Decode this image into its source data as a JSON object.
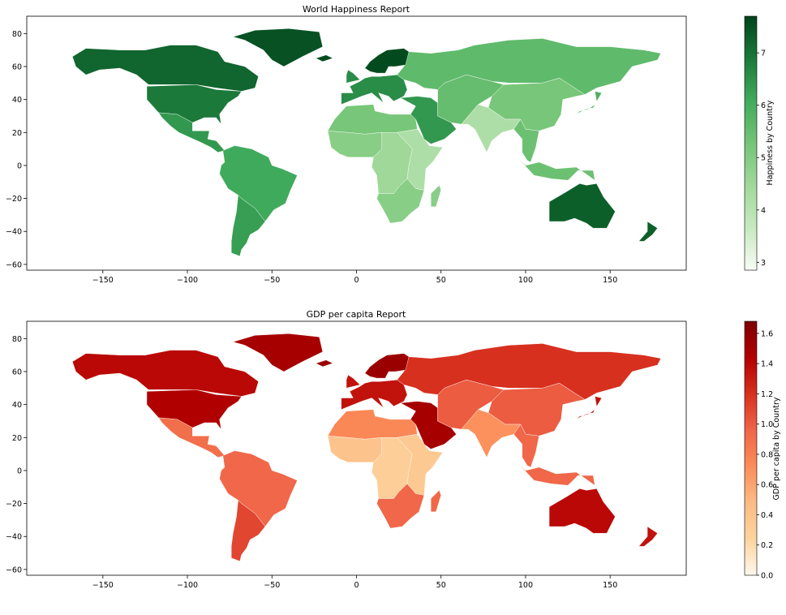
{
  "maps": [
    {
      "title": "World Happiness Report",
      "colorbar_label": "Happiness by Country",
      "colormap": "Greens",
      "x_ticks": [
        -150,
        -100,
        -50,
        0,
        50,
        100,
        150
      ],
      "y_ticks": [
        80,
        60,
        40,
        20,
        0,
        -20,
        -40,
        -60
      ],
      "cbar_ticks": [
        7,
        6,
        5,
        4,
        3
      ],
      "cbar_range": [
        2.85,
        7.7
      ],
      "cbar_stops": [
        "#00441b",
        "#1b7a3a",
        "#41ab5d",
        "#74c476",
        "#a1d99b",
        "#c7e9c0",
        "#f7fcf5"
      ],
      "regions": [
        {
          "name": "north-america",
          "value": 7.2
        },
        {
          "name": "usa",
          "value": 6.9
        },
        {
          "name": "mexico-central",
          "value": 6.4
        },
        {
          "name": "south-america",
          "value": 6.1
        },
        {
          "name": "southern-cone",
          "value": 6.3
        },
        {
          "name": "greenland",
          "value": 7.5
        },
        {
          "name": "scandinavia",
          "value": 7.6
        },
        {
          "name": "western-europe",
          "value": 6.6
        },
        {
          "name": "russia",
          "value": 5.6
        },
        {
          "name": "north-africa",
          "value": 5.2
        },
        {
          "name": "west-africa",
          "value": 4.9
        },
        {
          "name": "central-africa",
          "value": 4.5
        },
        {
          "name": "east-africa",
          "value": 4.2
        },
        {
          "name": "southern-africa",
          "value": 4.9
        },
        {
          "name": "middle-east",
          "value": 6.4
        },
        {
          "name": "central-asia",
          "value": 5.5
        },
        {
          "name": "china",
          "value": 5.2
        },
        {
          "name": "india",
          "value": 4.2
        },
        {
          "name": "southeast-asia",
          "value": 5.4
        },
        {
          "name": "japan",
          "value": 5.9
        },
        {
          "name": "australia",
          "value": 7.3
        },
        {
          "name": "new-zealand",
          "value": 7.3
        }
      ]
    },
    {
      "title": "GDP per capita Report",
      "colorbar_label": "GDP per capita by Country",
      "colormap": "OrRd",
      "x_ticks": [
        -150,
        -100,
        -50,
        0,
        50,
        100,
        150
      ],
      "y_ticks": [
        80,
        60,
        40,
        20,
        0,
        -20,
        -40,
        -60
      ],
      "cbar_ticks": [
        1.6,
        1.4,
        1.2,
        1.0,
        0.8,
        0.6,
        0.4,
        0.2,
        0.0
      ],
      "cbar_range": [
        0.0,
        1.68
      ],
      "cbar_stops": [
        "#7f0000",
        "#b30000",
        "#d7301f",
        "#ef6548",
        "#fc8d59",
        "#fdbb84",
        "#fdd49e",
        "#fff7ec"
      ],
      "regions": [
        {
          "name": "north-america",
          "value": 1.4
        },
        {
          "name": "usa",
          "value": 1.45
        },
        {
          "name": "mexico-central",
          "value": 0.9
        },
        {
          "name": "south-america",
          "value": 0.95
        },
        {
          "name": "southern-cone",
          "value": 1.1
        },
        {
          "name": "greenland",
          "value": 1.5
        },
        {
          "name": "scandinavia",
          "value": 1.55
        },
        {
          "name": "western-europe",
          "value": 1.35
        },
        {
          "name": "russia",
          "value": 1.2
        },
        {
          "name": "north-africa",
          "value": 0.75
        },
        {
          "name": "west-africa",
          "value": 0.4
        },
        {
          "name": "central-africa",
          "value": 0.3
        },
        {
          "name": "east-africa",
          "value": 0.35
        },
        {
          "name": "southern-africa",
          "value": 0.95
        },
        {
          "name": "middle-east",
          "value": 1.5
        },
        {
          "name": "central-asia",
          "value": 1.0
        },
        {
          "name": "china",
          "value": 1.0
        },
        {
          "name": "india",
          "value": 0.7
        },
        {
          "name": "southeast-asia",
          "value": 0.95
        },
        {
          "name": "japan",
          "value": 1.35
        },
        {
          "name": "australia",
          "value": 1.4
        },
        {
          "name": "new-zealand",
          "value": 1.35
        }
      ]
    }
  ]
}
